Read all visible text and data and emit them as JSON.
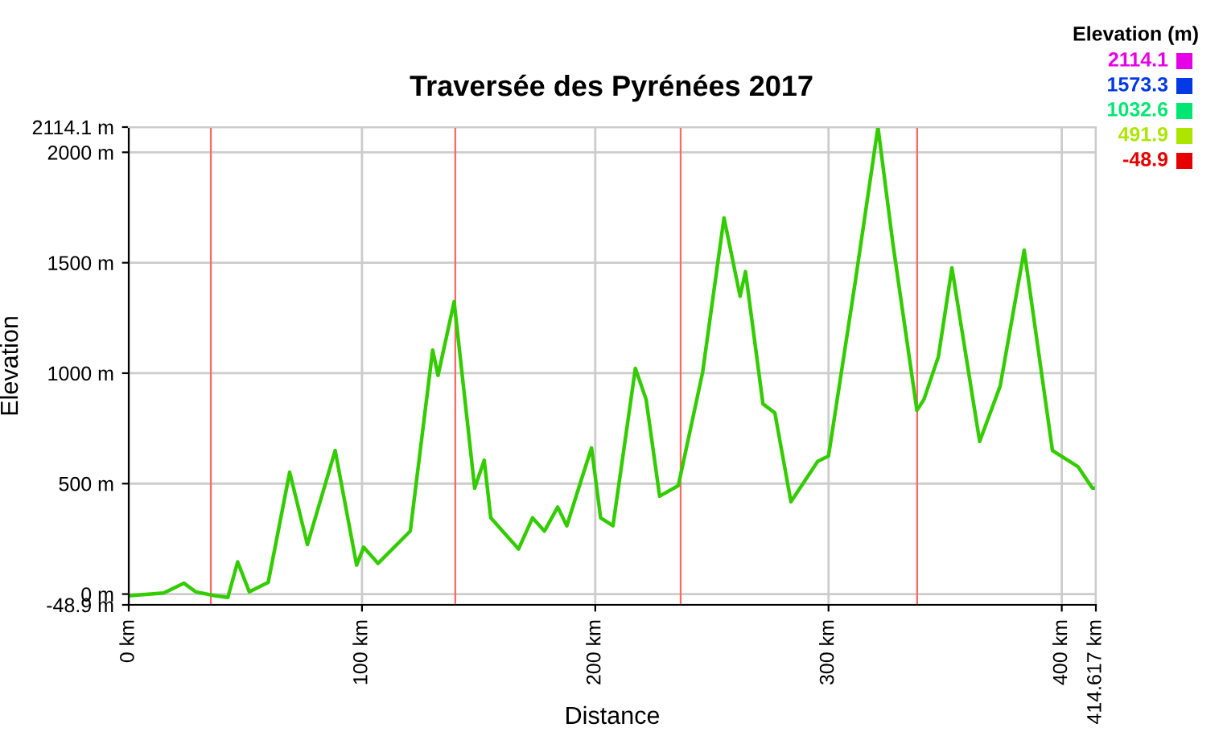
{
  "chart_data": {
    "type": "line",
    "title": "Traversée des Pyrénées 2017",
    "xlabel": "Distance",
    "ylabel": "Elevation",
    "legend_title": "Elevation (m)",
    "annotations": [
      "2114.1",
      "1573.3",
      "1032.6",
      "491.9",
      "-48.9"
    ],
    "xlim": [
      0,
      414.617
    ],
    "xticks": [
      {
        "value": 0,
        "label": "0 km"
      },
      {
        "value": 100,
        "label": "100 km"
      },
      {
        "value": 200,
        "label": "200 km"
      },
      {
        "value": 300,
        "label": "300 km"
      },
      {
        "value": 400,
        "label": "400 km"
      },
      {
        "value": 414.617,
        "label": "414.617 km"
      }
    ],
    "ylim": [
      -48.9,
      2114.1
    ],
    "yticks": [
      {
        "value": -48.9,
        "label": "-48.9 m"
      },
      {
        "value": 0,
        "label": "0 m"
      },
      {
        "value": 500,
        "label": "500 m"
      },
      {
        "value": 1000,
        "label": "1000 m"
      },
      {
        "value": 1500,
        "label": "1500 m"
      },
      {
        "value": 2000,
        "label": "2000 m"
      },
      {
        "value": 2114.1,
        "label": "2114.1 m"
      }
    ],
    "grid": true,
    "ref_lines": [
      {
        "axis": "x",
        "value": 35.2,
        "color": "#ff6666"
      },
      {
        "axis": "x",
        "value": 140,
        "color": "#ff6666"
      },
      {
        "axis": "x",
        "value": 236.6,
        "color": "#ff6666"
      },
      {
        "axis": "x",
        "value": 338,
        "color": "#ff6666"
      }
    ],
    "series": [
      {
        "color": "#33cc00",
        "x": [
          0.7,
          15,
          23.7,
          28.7,
          36.8,
          42.5,
          46.7,
          51.7,
          59.8,
          69,
          76.6,
          88.5,
          97.7,
          100.7,
          106.9,
          120.7,
          130.3,
          132.6,
          139.5,
          148.3,
          152.4,
          155.2,
          167.1,
          173.1,
          178.2,
          183.9,
          187.8,
          194.7,
          198.4,
          202.3,
          207.6,
          217.2,
          221.8,
          227.6,
          235.6,
          246,
          255.2,
          262.1,
          264.4,
          271.9,
          277,
          283.9,
          295.4,
          300,
          311.5,
          321.2,
          327.6,
          337.9,
          340.9,
          347.1,
          352.9,
          364.8,
          373.6,
          383.9,
          396,
          406.9,
          413.1,
          414.6
        ],
        "values": [
          -7,
          5,
          49,
          10,
          -7,
          -15,
          146,
          10,
          53,
          552,
          224,
          650,
          131,
          212,
          139,
          285,
          1105,
          990,
          1324,
          479,
          606,
          345,
          204,
          345,
          285,
          394,
          309,
          540,
          662,
          345,
          309,
          1022,
          881,
          443,
          491,
          1002,
          1703,
          1348,
          1460,
          861,
          820,
          418,
          601,
          625,
          1416,
          2114,
          1586,
          832,
          881,
          1075,
          1477,
          691,
          942,
          1557,
          650,
          577,
          480,
          480
        ]
      }
    ]
  }
}
